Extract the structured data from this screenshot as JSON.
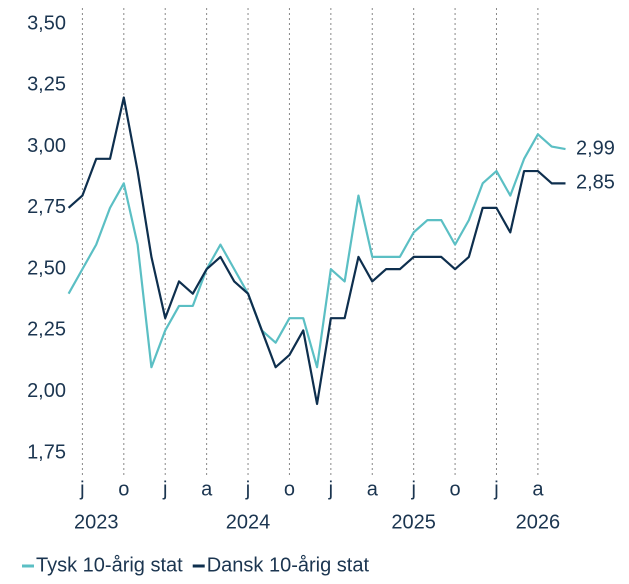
{
  "chart_data": {
    "type": "line",
    "x": [
      "2023-06",
      "2023-07",
      "2023-08",
      "2023-09",
      "2023-10",
      "2023-11",
      "2023-12",
      "2024-01",
      "2024-02",
      "2024-03",
      "2024-04",
      "2024-05",
      "2024-06",
      "2024-07",
      "2024-08",
      "2024-09",
      "2024-10",
      "2024-11",
      "2024-12",
      "2025-01",
      "2025-02",
      "2025-03",
      "2025-04",
      "2025-05",
      "2025-06",
      "2025-07",
      "2025-08",
      "2025-09",
      "2025-10",
      "2025-11",
      "2025-12",
      "2026-01",
      "2026-02",
      "2026-03",
      "2026-04",
      "2026-05",
      "2026-06"
    ],
    "series": [
      {
        "name": "Tysk 10-årig stat",
        "color": "#5bbfc4",
        "end_label": {
          "value": 2.99,
          "label": "2,99"
        },
        "values": [
          2.4,
          2.5,
          2.6,
          2.75,
          2.85,
          2.6,
          2.1,
          2.25,
          2.35,
          2.35,
          2.5,
          2.6,
          2.5,
          2.4,
          2.25,
          2.2,
          2.3,
          2.3,
          2.1,
          2.5,
          2.45,
          2.8,
          2.55,
          2.55,
          2.55,
          2.65,
          2.7,
          2.7,
          2.6,
          2.7,
          2.85,
          2.9,
          2.8,
          2.95,
          3.05,
          3.0,
          2.99
        ]
      },
      {
        "name": "Dansk 10-årig stat",
        "color": "#0e2f4e",
        "end_label": {
          "value": 2.85,
          "label": "2,85"
        },
        "values": [
          2.75,
          2.8,
          2.95,
          2.95,
          3.2,
          2.9,
          2.55,
          2.3,
          2.45,
          2.4,
          2.5,
          2.55,
          2.45,
          2.4,
          2.25,
          2.1,
          2.15,
          2.25,
          1.95,
          2.3,
          2.3,
          2.55,
          2.45,
          2.5,
          2.5,
          2.55,
          2.55,
          2.55,
          2.5,
          2.55,
          2.75,
          2.75,
          2.65,
          2.9,
          2.9,
          2.85,
          2.85
        ]
      }
    ],
    "xlim": [
      "2023-06",
      "2026-06"
    ],
    "xticks": [
      {
        "value": "2023-07",
        "label": "j"
      },
      {
        "value": "2023-10",
        "label": "o"
      },
      {
        "value": "2024-01",
        "label": "j"
      },
      {
        "value": "2024-04",
        "label": "a"
      },
      {
        "value": "2024-07",
        "label": "j"
      },
      {
        "value": "2024-10",
        "label": "o"
      },
      {
        "value": "2025-01",
        "label": "j"
      },
      {
        "value": "2025-04",
        "label": "a"
      },
      {
        "value": "2025-07",
        "label": "j"
      },
      {
        "value": "2025-10",
        "label": "o"
      },
      {
        "value": "2026-01",
        "label": "j"
      },
      {
        "value": "2026-04",
        "label": "a"
      }
    ],
    "year_ticks": [
      {
        "value": "2023-08",
        "label": "2023"
      },
      {
        "value": "2024-07",
        "label": "2024"
      },
      {
        "value": "2025-07",
        "label": "2025"
      },
      {
        "value": "2026-04",
        "label": "2026"
      }
    ],
    "ylim": [
      1.75,
      3.5
    ],
    "yticks": [
      {
        "value": 1.75,
        "label": "1,75"
      },
      {
        "value": 2.0,
        "label": "2,00"
      },
      {
        "value": 2.25,
        "label": "2,25"
      },
      {
        "value": 2.5,
        "label": "2,50"
      },
      {
        "value": 2.75,
        "label": "2,75"
      },
      {
        "value": 3.0,
        "label": "3,00"
      },
      {
        "value": 3.25,
        "label": "3,25"
      },
      {
        "value": 3.5,
        "label": "3,50"
      }
    ],
    "grid": true,
    "legend": "bottom"
  }
}
